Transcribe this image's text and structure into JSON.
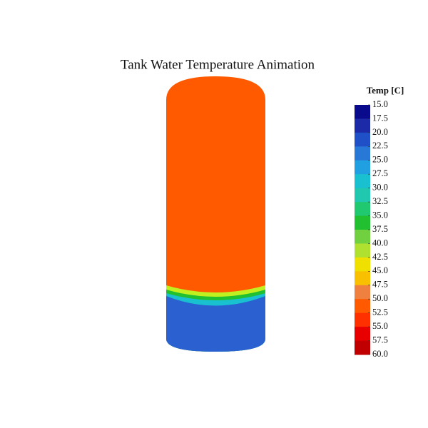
{
  "title": "Tank Water Temperature Animation",
  "colorbar": {
    "title": "Temp [C]",
    "ticks": [
      {
        "value": 15,
        "label": "15.0"
      },
      {
        "value": 17.5,
        "label": "17.5"
      },
      {
        "value": 20,
        "label": "20.0"
      },
      {
        "value": 22.5,
        "label": "22.5"
      },
      {
        "value": 25,
        "label": "25.0"
      },
      {
        "value": 27.5,
        "label": "27.5"
      },
      {
        "value": 30,
        "label": "30.0"
      },
      {
        "value": 32.5,
        "label": "32.5"
      },
      {
        "value": 35,
        "label": "35.0"
      },
      {
        "value": 37.5,
        "label": "37.5"
      },
      {
        "value": 40,
        "label": "40.0"
      },
      {
        "value": 42.5,
        "label": "42.5"
      },
      {
        "value": 45,
        "label": "45.0"
      },
      {
        "value": 47.5,
        "label": "47.5"
      },
      {
        "value": 50,
        "label": "50.0"
      },
      {
        "value": 52.5,
        "label": "52.5"
      },
      {
        "value": 55,
        "label": "55.0"
      },
      {
        "value": 57.5,
        "label": "57.5"
      },
      {
        "value": 60,
        "label": "60.0"
      }
    ],
    "colors": [
      "#0a0a8c",
      "#1c2aa8",
      "#2050c8",
      "#2878d8",
      "#20a0e0",
      "#18c0d0",
      "#20c8b0",
      "#20c870",
      "#20c030",
      "#70d040",
      "#b0e030",
      "#f0e000",
      "#f8c000",
      "#f08040",
      "#ff5a00",
      "#ff3000",
      "#e80000",
      "#c00000"
    ]
  }
}
